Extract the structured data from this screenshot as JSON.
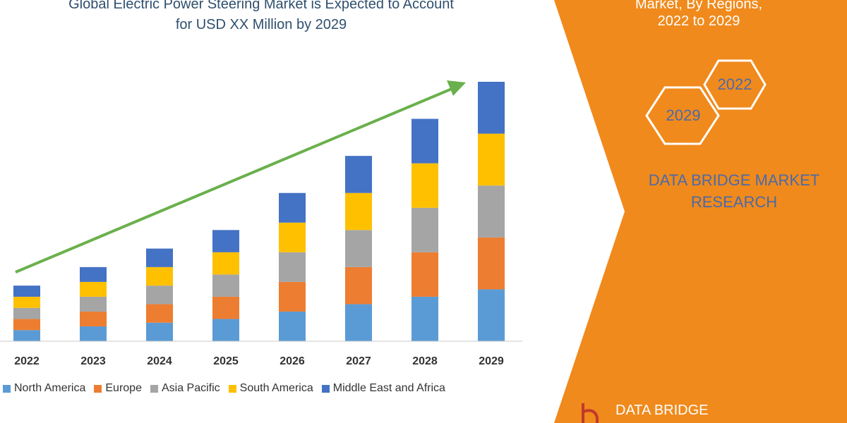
{
  "header": {
    "title_line1": "Global Electric Power Steering Market is Expected to Account",
    "title_line2": "for USD XX Million by 2029"
  },
  "side_panel": {
    "line1": "Market, By Regions,",
    "line2": "2022 to 2029",
    "hex_2022": "2022",
    "hex_2029": "2029",
    "brand_line1": "DATA BRIDGE MARKET",
    "brand_line2": "RESEARCH",
    "footer_brand": "DATA BRIDGE"
  },
  "colors": {
    "orange_panel": "#f08a1c",
    "trend_arrow": "#6ab04c"
  },
  "chart_data": {
    "type": "bar",
    "stacked": true,
    "title": "Global Electric Power Steering Market is Expected to Account for USD XX Million by 2029",
    "categories": [
      "2022",
      "2023",
      "2024",
      "2025",
      "2026",
      "2027",
      "2028",
      "2029"
    ],
    "series": [
      {
        "name": "North America",
        "color": "#5b9bd5",
        "values": [
          3.0,
          4.0,
          5.0,
          6.0,
          8.0,
          10.0,
          12.0,
          14.0
        ]
      },
      {
        "name": "Europe",
        "color": "#ed7d31",
        "values": [
          3.0,
          4.0,
          5.0,
          6.0,
          8.0,
          10.0,
          12.0,
          14.0
        ]
      },
      {
        "name": "Asia Pacific",
        "color": "#a5a5a5",
        "values": [
          3.0,
          4.0,
          5.0,
          6.0,
          8.0,
          10.0,
          12.0,
          14.0
        ]
      },
      {
        "name": "South America",
        "color": "#ffc000",
        "values": [
          3.0,
          4.0,
          5.0,
          6.0,
          8.0,
          10.0,
          12.0,
          14.0
        ]
      },
      {
        "name": "Middle East and Africa",
        "color": "#4472c4",
        "values": [
          3.0,
          4.0,
          5.0,
          6.0,
          8.0,
          10.0,
          12.0,
          14.0
        ]
      }
    ],
    "ylim": [
      0,
      70
    ],
    "xlabel": "",
    "ylabel": "",
    "grid": false,
    "legend_position": "bottom"
  }
}
